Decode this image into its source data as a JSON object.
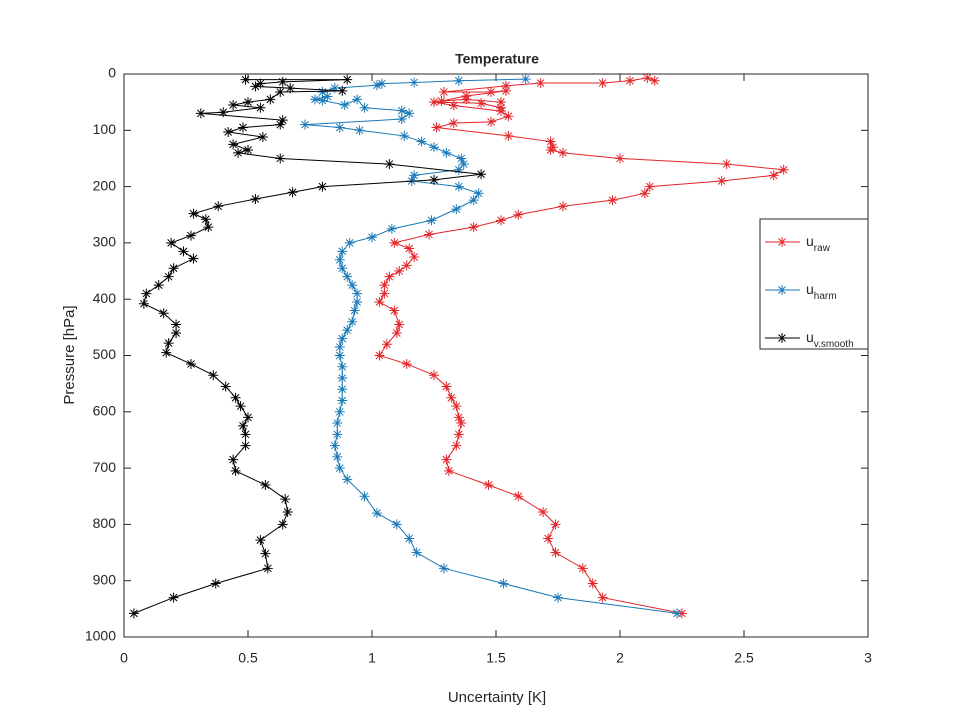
{
  "chart_data": {
    "type": "line",
    "title": "Temperature",
    "xlabel": "Uncertainty [K]",
    "ylabel": "Pressure [hPa]",
    "xlim": [
      0,
      3
    ],
    "xticks": [
      0,
      0.5,
      1,
      1.5,
      2,
      2.5,
      3
    ],
    "ylim": [
      0,
      1000
    ],
    "yticks": [
      0,
      100,
      200,
      300,
      400,
      500,
      600,
      700,
      800,
      900,
      1000
    ],
    "y_reversed": true,
    "grid": false,
    "legend": "right",
    "marker": "asterisk",
    "series": [
      {
        "name": "u",
        "subscript": "raw",
        "color": "#e3262a",
        "x": [
          2.14,
          2.11,
          2.04,
          1.93,
          1.68,
          1.54,
          1.29,
          1.48,
          1.54,
          1.38,
          1.28,
          1.38,
          1.52,
          1.52,
          1.44,
          1.25,
          1.33,
          1.52,
          1.55,
          1.48,
          1.33,
          1.26,
          1.55,
          1.72,
          1.73,
          1.72,
          1.77,
          2.0,
          2.43,
          2.66,
          2.62,
          2.41,
          2.12,
          2.1,
          1.97,
          1.77,
          1.59,
          1.52,
          1.41,
          1.23,
          1.09,
          1.15,
          1.17,
          1.14,
          1.11,
          1.07,
          1.05,
          1.05,
          1.03,
          1.09,
          1.11,
          1.1,
          1.06,
          1.03,
          1.14,
          1.25,
          1.3,
          1.32,
          1.34,
          1.35,
          1.36,
          1.35,
          1.34,
          1.3,
          1.31,
          1.47,
          1.59,
          1.69,
          1.74,
          1.71,
          1.74,
          1.85,
          1.89,
          1.93,
          2.25
        ],
        "y": [
          12,
          7,
          12,
          16,
          16,
          21,
          32,
          32,
          30,
          39,
          48,
          45,
          50,
          60,
          52,
          50,
          56,
          66,
          75,
          85,
          87,
          95,
          110,
          120,
          130,
          135,
          140,
          150,
          160,
          170,
          180,
          190,
          200,
          212,
          224,
          235,
          250,
          260,
          272,
          285,
          300,
          310,
          325,
          340,
          350,
          360,
          375,
          390,
          405,
          420,
          445,
          460,
          480,
          500,
          515,
          535,
          555,
          575,
          590,
          610,
          620,
          640,
          660,
          685,
          705,
          730,
          750,
          778,
          800,
          825,
          850,
          878,
          905,
          930,
          958
        ]
      },
      {
        "name": "u",
        "subscript": "harm",
        "color": "#1a7ab8",
        "x": [
          1.62,
          1.35,
          1.17,
          1.04,
          1.02,
          0.85,
          0.8,
          0.82,
          0.77,
          0.8,
          0.89,
          0.94,
          0.97,
          1.12,
          1.15,
          1.12,
          0.73,
          0.87,
          0.95,
          1.13,
          1.2,
          1.25,
          1.3,
          1.36,
          1.37,
          1.35,
          1.17,
          1.16,
          1.35,
          1.43,
          1.41,
          1.34,
          1.24,
          1.08,
          1,
          0.91,
          0.88,
          0.87,
          0.88,
          0.9,
          0.92,
          0.94,
          0.94,
          0.93,
          0.92,
          0.9,
          0.88,
          0.87,
          0.87,
          0.88,
          0.88,
          0.88,
          0.88,
          0.87,
          0.86,
          0.86,
          0.85,
          0.86,
          0.87,
          0.9,
          0.97,
          1.02,
          1.1,
          1.15,
          1.18,
          1.29,
          1.53,
          1.75,
          2.23
        ],
        "y": [
          9,
          12,
          15,
          17,
          20,
          25,
          32,
          40,
          45,
          47,
          55,
          45,
          60,
          65,
          70,
          80,
          90,
          95,
          100,
          110,
          120,
          130,
          140,
          150,
          160,
          170,
          180,
          190,
          200,
          212,
          224,
          240,
          260,
          275,
          290,
          300,
          315,
          330,
          345,
          360,
          375,
          390,
          405,
          420,
          440,
          455,
          470,
          485,
          500,
          520,
          540,
          560,
          580,
          600,
          620,
          640,
          660,
          680,
          700,
          720,
          750,
          780,
          800,
          825,
          850,
          878,
          905,
          930,
          958
        ]
      },
      {
        "name": "u",
        "subscript": "v.smooth",
        "color": "#000000",
        "x": [
          0.49,
          0.9,
          0.64,
          0.55,
          0.53,
          0.67,
          0.88,
          0.63,
          0.59,
          0.5,
          0.44,
          0.55,
          0.4,
          0.31,
          0.64,
          0.63,
          0.48,
          0.42,
          0.56,
          0.44,
          0.5,
          0.46,
          0.63,
          1.07,
          1.44,
          1.25,
          0.8,
          0.68,
          0.53,
          0.38,
          0.28,
          0.33,
          0.34,
          0.27,
          0.19,
          0.24,
          0.28,
          0.2,
          0.18,
          0.14,
          0.09,
          0.08,
          0.16,
          0.21,
          0.21,
          0.18,
          0.17,
          0.27,
          0.36,
          0.41,
          0.45,
          0.47,
          0.5,
          0.48,
          0.49,
          0.49,
          0.44,
          0.45,
          0.57,
          0.65,
          0.66,
          0.64,
          0.55,
          0.57,
          0.58,
          0.37,
          0.2,
          0.04
        ],
        "y": [
          10,
          10,
          14,
          17,
          22,
          25,
          30,
          32,
          45,
          50,
          55,
          60,
          68,
          70,
          82,
          90,
          95,
          103,
          112,
          125,
          135,
          140,
          150,
          160,
          178,
          188,
          200,
          210,
          222,
          235,
          248,
          258,
          272,
          287,
          300,
          315,
          328,
          345,
          360,
          375,
          390,
          408,
          425,
          445,
          460,
          478,
          495,
          515,
          535,
          555,
          575,
          590,
          610,
          625,
          640,
          660,
          685,
          705,
          730,
          755,
          778,
          800,
          828,
          852,
          878,
          905,
          930,
          958
        ]
      }
    ]
  }
}
